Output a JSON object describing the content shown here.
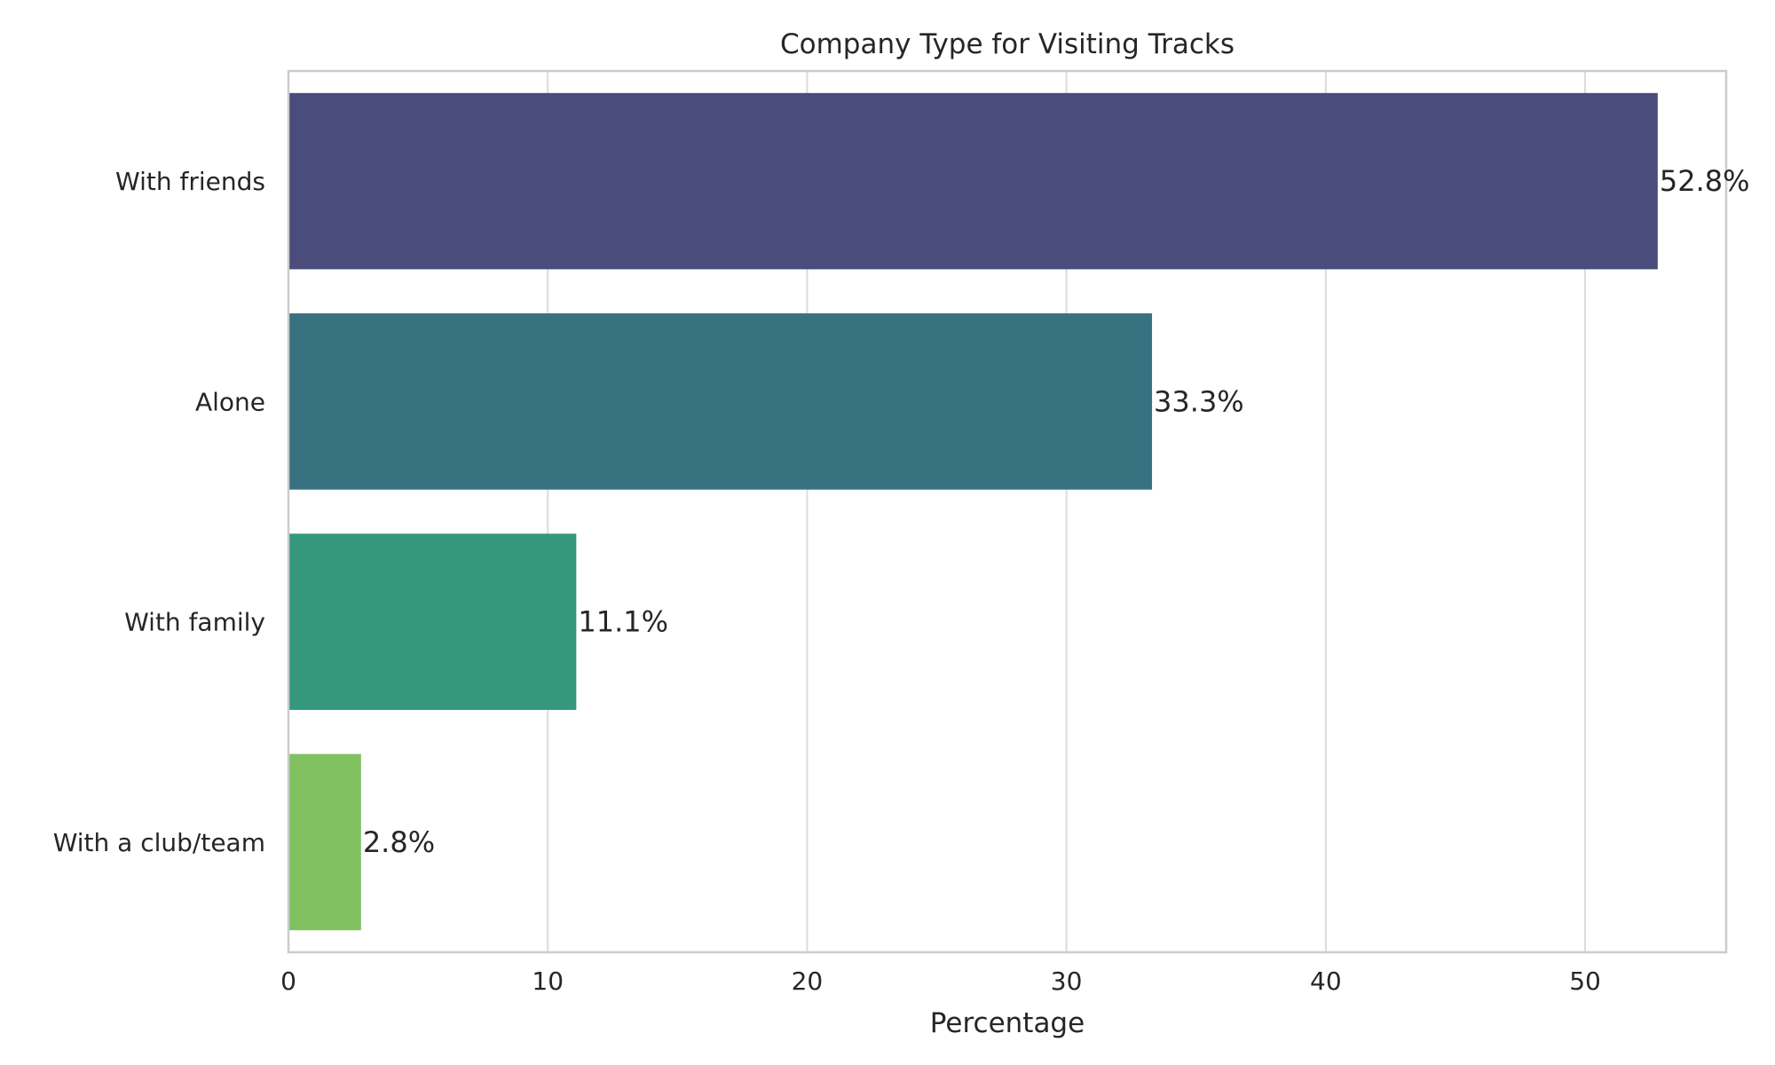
{
  "chart_data": {
    "type": "bar",
    "orientation": "horizontal",
    "title": "Company Type for Visiting Tracks",
    "xlabel": "Percentage",
    "ylabel": "",
    "categories": [
      "With friends",
      "Alone",
      "With family",
      "With a club/team"
    ],
    "values": [
      52.8,
      33.3,
      11.1,
      2.8
    ],
    "data_labels": [
      "52.8%",
      "33.3%",
      "11.1%",
      "2.8%"
    ],
    "colors": [
      "#4a4c7c",
      "#377281",
      "#35987c",
      "#81c160"
    ],
    "xlim": [
      0,
      55.44
    ],
    "xticks": [
      0,
      10,
      20,
      30,
      40,
      50
    ],
    "xtick_labels": [
      "0",
      "10",
      "20",
      "30",
      "40",
      "50"
    ],
    "grid": true,
    "legend": "none"
  }
}
